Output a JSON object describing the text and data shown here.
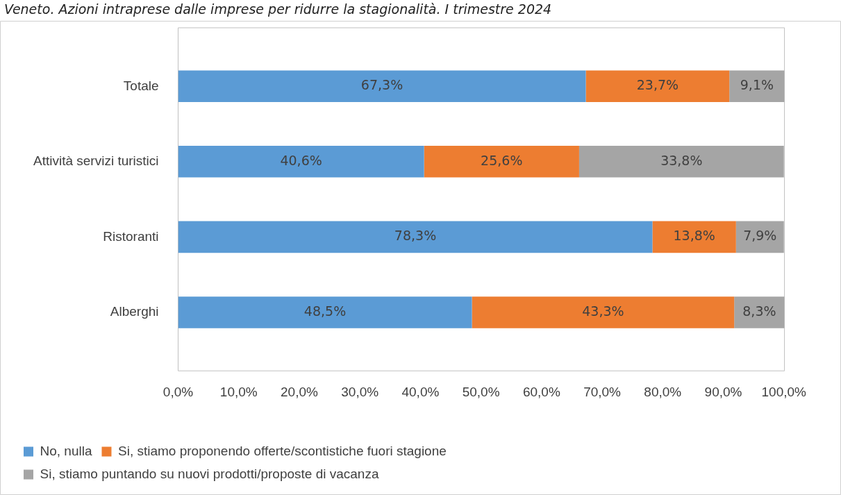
{
  "chart_data": {
    "type": "bar",
    "orientation": "horizontal",
    "stacked": true,
    "title": "Veneto. Azioni intraprese dalle imprese per ridurre la stagionalità. I trimestre 2024",
    "categories": [
      "Totale",
      "Attività servizi turistici",
      "Ristoranti",
      "Alberghi"
    ],
    "series": [
      {
        "name": "No, nulla",
        "color": "#5b9bd5",
        "values": [
          67.3,
          40.6,
          78.3,
          48.5
        ],
        "value_labels": [
          "67,3%",
          "40,6%",
          "78,3%",
          "48,5%"
        ]
      },
      {
        "name": "Si, stiamo proponendo offerte/scontistiche fuori stagione",
        "color": "#ed7d31",
        "values": [
          23.7,
          25.6,
          13.8,
          43.3
        ],
        "value_labels": [
          "23,7%",
          "25,6%",
          "13,8%",
          "43,3%"
        ]
      },
      {
        "name": "Si, stiamo puntando su nuovi prodotti/proposte di vacanza",
        "color": "#a5a5a5",
        "values": [
          9.1,
          33.8,
          7.9,
          8.3
        ],
        "value_labels": [
          "9,1%",
          "33,8%",
          "7,9%",
          "8,3%"
        ]
      }
    ],
    "xlim": [
      0,
      100.1
    ],
    "xticks": [
      {
        "value": 0,
        "label": "0,0%"
      },
      {
        "value": 10,
        "label": "10,0%"
      },
      {
        "value": 20,
        "label": "20,0%"
      },
      {
        "value": 30,
        "label": "30,0%"
      },
      {
        "value": 40,
        "label": "40,0%"
      },
      {
        "value": 50,
        "label": "50,0%"
      },
      {
        "value": 60,
        "label": "60,0%"
      },
      {
        "value": 70,
        "label": "70,0%"
      },
      {
        "value": 80,
        "label": "80,0%"
      },
      {
        "value": 90,
        "label": "90,0%"
      },
      {
        "value": 100,
        "label": "100,0%"
      }
    ],
    "grid": false,
    "legend": "bottom"
  }
}
